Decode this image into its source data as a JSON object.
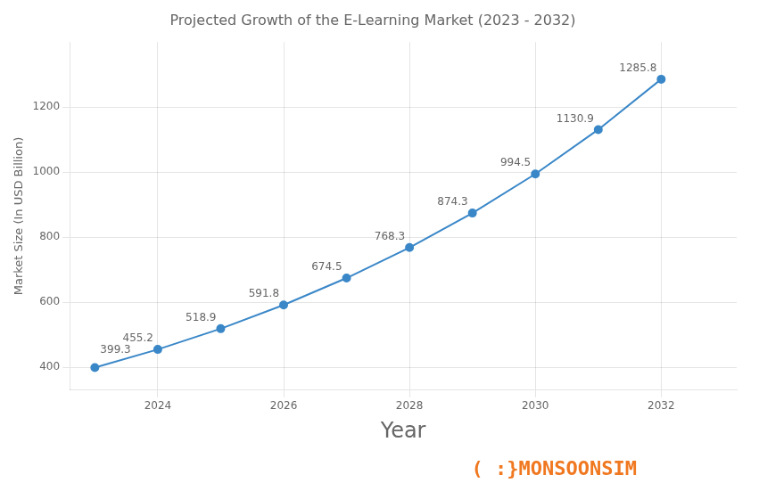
{
  "chart_data": {
    "type": "line",
    "title": "Projected Growth of the E-Learning Market (2023 - 2032)",
    "xlabel": "Year",
    "ylabel": "Market Size (In USD Billion)",
    "x": [
      2023,
      2024,
      2025,
      2026,
      2027,
      2028,
      2029,
      2030,
      2031,
      2032
    ],
    "values": [
      399.3,
      455.2,
      518.9,
      591.8,
      674.5,
      768.3,
      874.3,
      994.5,
      1130.9,
      1285.8
    ],
    "color": "#3a87c8",
    "marker": "circle",
    "xlim": [
      2022.6,
      2033.2
    ],
    "ylim": [
      330,
      1400
    ],
    "xticks": [
      2024,
      2026,
      2028,
      2030,
      2032
    ],
    "yticks": [
      400,
      600,
      800,
      1000,
      1200
    ],
    "grid": true,
    "data_labels": true,
    "annotations": [
      {
        "text": "( :}MONSOONSIM",
        "color": "#f07820"
      }
    ]
  }
}
